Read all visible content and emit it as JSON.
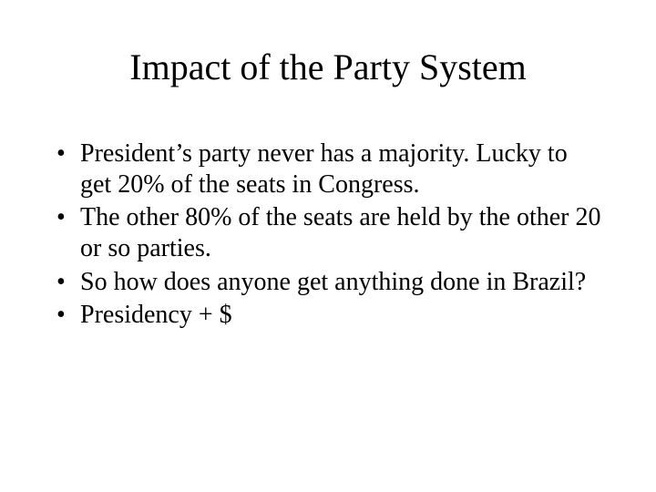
{
  "slide": {
    "title": "Impact of the Party System",
    "title_fontsize": 40,
    "body_fontsize": 28,
    "font_family": "Times New Roman",
    "background_color": "#ffffff",
    "text_color": "#000000",
    "bullets": [
      "President’s party never has a majority. Lucky to get 20% of the seats in Congress.",
      "The other 80% of the seats are held by the other 20 or so parties.",
      "So how does anyone get anything done in Brazil?",
      "Presidency + $"
    ]
  }
}
